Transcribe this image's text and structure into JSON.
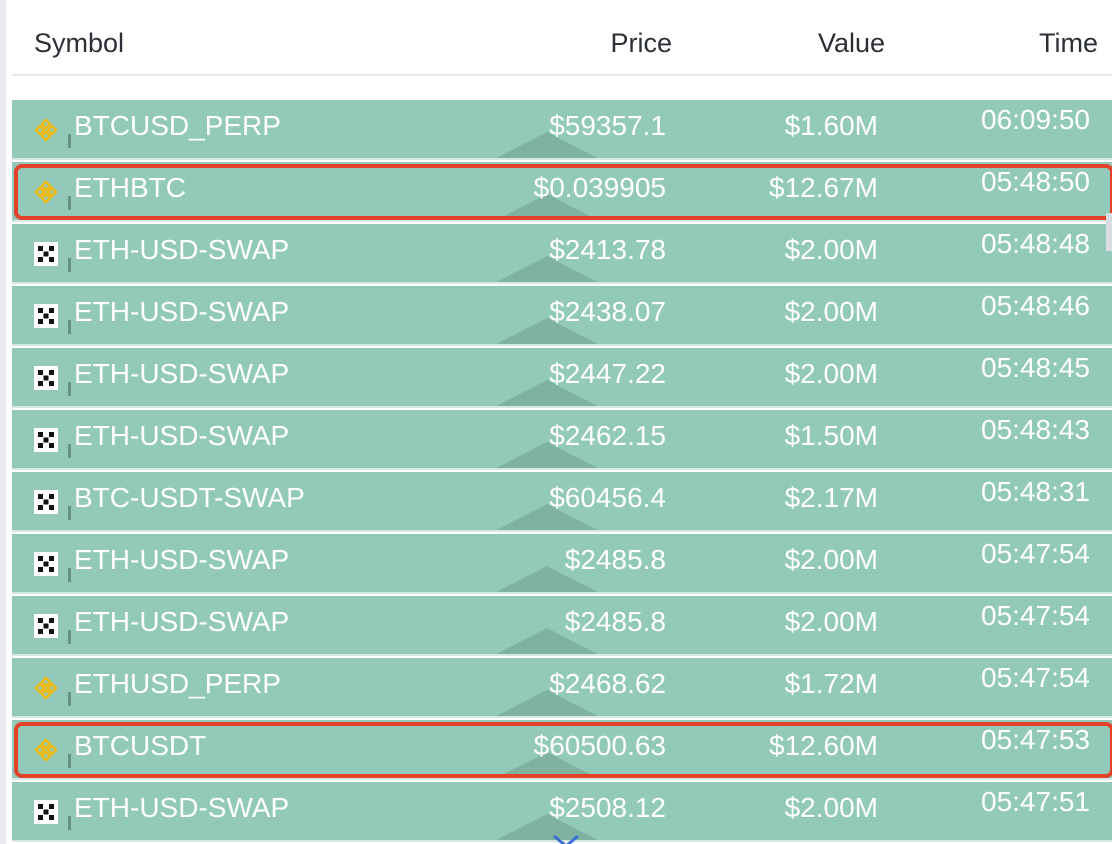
{
  "columns": {
    "symbol": "Symbol",
    "price": "Price",
    "value": "Value",
    "time": "Time"
  },
  "colors": {
    "row_bg": "#92c9b9",
    "highlight": "#e2412a",
    "binance_icon": "#f0b90b"
  },
  "rows": [
    {
      "icon": "binance-icon",
      "symbol": "BTCUSD_PERP",
      "price": "$59357.1",
      "value": "$1.60M",
      "time": "06:09:50",
      "highlighted": false
    },
    {
      "icon": "binance-icon",
      "symbol": "ETHBTC",
      "price": "$0.039905",
      "value": "$12.67M",
      "time": "05:48:50",
      "highlighted": true
    },
    {
      "icon": "okx-icon",
      "symbol": "ETH-USD-SWAP",
      "price": "$2413.78",
      "value": "$2.00M",
      "time": "05:48:48",
      "highlighted": false
    },
    {
      "icon": "okx-icon",
      "symbol": "ETH-USD-SWAP",
      "price": "$2438.07",
      "value": "$2.00M",
      "time": "05:48:46",
      "highlighted": false
    },
    {
      "icon": "okx-icon",
      "symbol": "ETH-USD-SWAP",
      "price": "$2447.22",
      "value": "$2.00M",
      "time": "05:48:45",
      "highlighted": false
    },
    {
      "icon": "okx-icon",
      "symbol": "ETH-USD-SWAP",
      "price": "$2462.15",
      "value": "$1.50M",
      "time": "05:48:43",
      "highlighted": false
    },
    {
      "icon": "okx-icon",
      "symbol": "BTC-USDT-SWAP",
      "price": "$60456.4",
      "value": "$2.17M",
      "time": "05:48:31",
      "highlighted": false
    },
    {
      "icon": "okx-icon",
      "symbol": "ETH-USD-SWAP",
      "price": "$2485.8",
      "value": "$2.00M",
      "time": "05:47:54",
      "highlighted": false
    },
    {
      "icon": "okx-icon",
      "symbol": "ETH-USD-SWAP",
      "price": "$2485.8",
      "value": "$2.00M",
      "time": "05:47:54",
      "highlighted": false
    },
    {
      "icon": "binance-icon",
      "symbol": "ETHUSD_PERP",
      "price": "$2468.62",
      "value": "$1.72M",
      "time": "05:47:54",
      "highlighted": false
    },
    {
      "icon": "binance-icon",
      "symbol": "BTCUSDT",
      "price": "$60500.63",
      "value": "$12.60M",
      "time": "05:47:53",
      "highlighted": true
    },
    {
      "icon": "okx-icon",
      "symbol": "ETH-USD-SWAP",
      "price": "$2508.12",
      "value": "$2.00M",
      "time": "05:47:51",
      "highlighted": false
    }
  ]
}
